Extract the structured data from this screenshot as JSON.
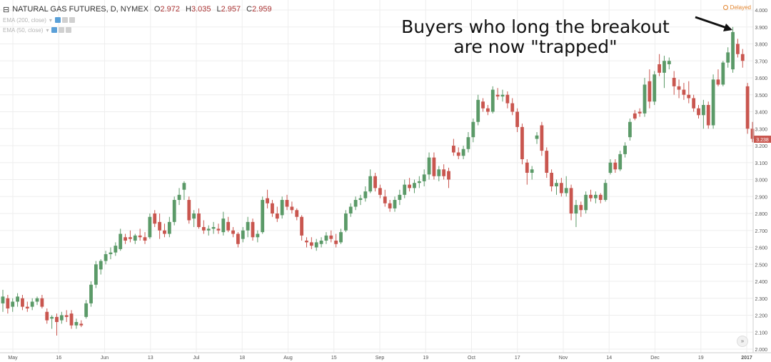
{
  "legend": {
    "symbol": "NATURAL GAS FUTURES, D, NYMEX",
    "open_label": "O",
    "open": "2.972",
    "high_label": "H",
    "high": "3.035",
    "low_label": "L",
    "low": "2.957",
    "close_label": "C",
    "close": "2.959",
    "indicators": [
      {
        "label": "EMA (200, close)"
      },
      {
        "label": "EMA (50, close)"
      }
    ]
  },
  "status": {
    "delayed": "Delayed"
  },
  "annotation": {
    "line1": "Buyers who long the breakout",
    "line2": "are now \"trapped\""
  },
  "icons": {
    "collapse": "collapse-legend-icon",
    "chevron": "chevron-down-icon",
    "eye": "eye-icon",
    "gear": "gear-icon",
    "close": "close-icon",
    "goto": "double-chevron-right-icon",
    "arrow": "arrow-annotation-icon"
  },
  "colors": {
    "up": "#5b9a68",
    "down": "#c9564f",
    "grid": "#eeeeee",
    "price_tag": "#c9564f",
    "delayed": "#e2832b"
  },
  "chart_data": {
    "type": "candlestick",
    "title": "NATURAL GAS FUTURES, D, NYMEX",
    "xlabel": "",
    "ylabel": "",
    "ylim": [
      2.0,
      4.0
    ],
    "y_ticks": [
      "4.000",
      "3.900",
      "3.800",
      "3.700",
      "3.600",
      "3.500",
      "3.400",
      "3.300",
      "3.200",
      "3.100",
      "3.000",
      "2.900",
      "2.800",
      "2.700",
      "2.600",
      "2.500",
      "2.400",
      "2.300",
      "2.200",
      "2.100",
      "2.000"
    ],
    "x_tick_labels": [
      "May",
      "16",
      "Jun",
      "13",
      "Jul",
      "18",
      "Aug",
      "15",
      "Sep",
      "19",
      "Oct",
      "17",
      "Nov",
      "14",
      "Dec",
      "19",
      "2017"
    ],
    "last_price": "3.238",
    "grid": true,
    "candles": [
      {
        "o": 2.27,
        "h": 2.35,
        "l": 2.22,
        "c": 2.31
      },
      {
        "o": 2.3,
        "h": 2.32,
        "l": 2.21,
        "c": 2.24
      },
      {
        "o": 2.25,
        "h": 2.3,
        "l": 2.22,
        "c": 2.28
      },
      {
        "o": 2.28,
        "h": 2.33,
        "l": 2.25,
        "c": 2.31
      },
      {
        "o": 2.3,
        "h": 2.32,
        "l": 2.23,
        "c": 2.25
      },
      {
        "o": 2.25,
        "h": 2.28,
        "l": 2.22,
        "c": 2.24
      },
      {
        "o": 2.25,
        "h": 2.3,
        "l": 2.23,
        "c": 2.28
      },
      {
        "o": 2.28,
        "h": 2.31,
        "l": 2.26,
        "c": 2.3
      },
      {
        "o": 2.3,
        "h": 2.32,
        "l": 2.24,
        "c": 2.25
      },
      {
        "o": 2.22,
        "h": 2.24,
        "l": 2.15,
        "c": 2.17
      },
      {
        "o": 2.18,
        "h": 2.2,
        "l": 2.12,
        "c": 2.19
      },
      {
        "o": 2.19,
        "h": 2.21,
        "l": 2.08,
        "c": 2.16
      },
      {
        "o": 2.17,
        "h": 2.22,
        "l": 2.15,
        "c": 2.2
      },
      {
        "o": 2.2,
        "h": 2.23,
        "l": 2.16,
        "c": 2.19
      },
      {
        "o": 2.21,
        "h": 2.23,
        "l": 2.12,
        "c": 2.14
      },
      {
        "o": 2.14,
        "h": 2.18,
        "l": 2.12,
        "c": 2.16
      },
      {
        "o": 2.15,
        "h": 2.17,
        "l": 2.13,
        "c": 2.14
      },
      {
        "o": 2.19,
        "h": 2.29,
        "l": 2.18,
        "c": 2.27
      },
      {
        "o": 2.27,
        "h": 2.4,
        "l": 2.25,
        "c": 2.38
      },
      {
        "o": 2.38,
        "h": 2.52,
        "l": 2.36,
        "c": 2.5
      },
      {
        "o": 2.47,
        "h": 2.53,
        "l": 2.44,
        "c": 2.52
      },
      {
        "o": 2.52,
        "h": 2.58,
        "l": 2.5,
        "c": 2.56
      },
      {
        "o": 2.56,
        "h": 2.6,
        "l": 2.53,
        "c": 2.57
      },
      {
        "o": 2.57,
        "h": 2.63,
        "l": 2.55,
        "c": 2.61
      },
      {
        "o": 2.59,
        "h": 2.71,
        "l": 2.58,
        "c": 2.68
      },
      {
        "o": 2.66,
        "h": 2.68,
        "l": 2.62,
        "c": 2.64
      },
      {
        "o": 2.66,
        "h": 2.7,
        "l": 2.63,
        "c": 2.65
      },
      {
        "o": 2.64,
        "h": 2.68,
        "l": 2.62,
        "c": 2.67
      },
      {
        "o": 2.67,
        "h": 2.71,
        "l": 2.64,
        "c": 2.66
      },
      {
        "o": 2.66,
        "h": 2.69,
        "l": 2.62,
        "c": 2.64
      },
      {
        "o": 2.66,
        "h": 2.8,
        "l": 2.65,
        "c": 2.78
      },
      {
        "o": 2.8,
        "h": 2.82,
        "l": 2.72,
        "c": 2.74
      },
      {
        "o": 2.75,
        "h": 2.8,
        "l": 2.65,
        "c": 2.7
      },
      {
        "o": 2.7,
        "h": 2.74,
        "l": 2.66,
        "c": 2.68
      },
      {
        "o": 2.68,
        "h": 2.78,
        "l": 2.66,
        "c": 2.75
      },
      {
        "o": 2.75,
        "h": 2.9,
        "l": 2.73,
        "c": 2.88
      },
      {
        "o": 2.88,
        "h": 2.95,
        "l": 2.85,
        "c": 2.91
      },
      {
        "o": 2.94,
        "h": 2.99,
        "l": 2.88,
        "c": 2.98
      },
      {
        "o": 2.88,
        "h": 2.9,
        "l": 2.74,
        "c": 2.76
      },
      {
        "o": 2.77,
        "h": 2.82,
        "l": 2.72,
        "c": 2.8
      },
      {
        "o": 2.8,
        "h": 2.83,
        "l": 2.71,
        "c": 2.72
      },
      {
        "o": 2.72,
        "h": 2.76,
        "l": 2.68,
        "c": 2.7
      },
      {
        "o": 2.7,
        "h": 2.73,
        "l": 2.67,
        "c": 2.71
      },
      {
        "o": 2.71,
        "h": 2.75,
        "l": 2.68,
        "c": 2.72
      },
      {
        "o": 2.71,
        "h": 2.74,
        "l": 2.68,
        "c": 2.7
      },
      {
        "o": 2.69,
        "h": 2.81,
        "l": 2.67,
        "c": 2.77
      },
      {
        "o": 2.75,
        "h": 2.78,
        "l": 2.69,
        "c": 2.7
      },
      {
        "o": 2.7,
        "h": 2.72,
        "l": 2.66,
        "c": 2.68
      },
      {
        "o": 2.68,
        "h": 2.69,
        "l": 2.6,
        "c": 2.62
      },
      {
        "o": 2.65,
        "h": 2.72,
        "l": 2.63,
        "c": 2.7
      },
      {
        "o": 2.7,
        "h": 2.78,
        "l": 2.66,
        "c": 2.75
      },
      {
        "o": 2.75,
        "h": 2.77,
        "l": 2.64,
        "c": 2.66
      },
      {
        "o": 2.66,
        "h": 2.7,
        "l": 2.63,
        "c": 2.68
      },
      {
        "o": 2.69,
        "h": 2.9,
        "l": 2.68,
        "c": 2.88
      },
      {
        "o": 2.89,
        "h": 2.94,
        "l": 2.83,
        "c": 2.86
      },
      {
        "o": 2.86,
        "h": 2.88,
        "l": 2.78,
        "c": 2.8
      },
      {
        "o": 2.8,
        "h": 2.84,
        "l": 2.75,
        "c": 2.77
      },
      {
        "o": 2.79,
        "h": 2.9,
        "l": 2.77,
        "c": 2.88
      },
      {
        "o": 2.88,
        "h": 2.91,
        "l": 2.82,
        "c": 2.84
      },
      {
        "o": 2.84,
        "h": 2.87,
        "l": 2.8,
        "c": 2.82
      },
      {
        "o": 2.82,
        "h": 2.83,
        "l": 2.76,
        "c": 2.78
      },
      {
        "o": 2.78,
        "h": 2.79,
        "l": 2.64,
        "c": 2.67
      },
      {
        "o": 2.64,
        "h": 2.66,
        "l": 2.6,
        "c": 2.63
      },
      {
        "o": 2.63,
        "h": 2.66,
        "l": 2.59,
        "c": 2.61
      },
      {
        "o": 2.6,
        "h": 2.65,
        "l": 2.58,
        "c": 2.63
      },
      {
        "o": 2.62,
        "h": 2.66,
        "l": 2.6,
        "c": 2.64
      },
      {
        "o": 2.64,
        "h": 2.69,
        "l": 2.62,
        "c": 2.67
      },
      {
        "o": 2.67,
        "h": 2.7,
        "l": 2.63,
        "c": 2.65
      },
      {
        "o": 2.64,
        "h": 2.68,
        "l": 2.6,
        "c": 2.62
      },
      {
        "o": 2.63,
        "h": 2.71,
        "l": 2.62,
        "c": 2.69
      },
      {
        "o": 2.7,
        "h": 2.82,
        "l": 2.69,
        "c": 2.8
      },
      {
        "o": 2.8,
        "h": 2.86,
        "l": 2.78,
        "c": 2.84
      },
      {
        "o": 2.84,
        "h": 2.9,
        "l": 2.82,
        "c": 2.88
      },
      {
        "o": 2.88,
        "h": 2.91,
        "l": 2.85,
        "c": 2.89
      },
      {
        "o": 2.89,
        "h": 2.96,
        "l": 2.87,
        "c": 2.93
      },
      {
        "o": 2.93,
        "h": 3.06,
        "l": 2.92,
        "c": 3.02
      },
      {
        "o": 3.02,
        "h": 3.04,
        "l": 2.93,
        "c": 2.95
      },
      {
        "o": 2.95,
        "h": 2.97,
        "l": 2.89,
        "c": 2.91
      },
      {
        "o": 2.9,
        "h": 2.94,
        "l": 2.84,
        "c": 2.86
      },
      {
        "o": 2.86,
        "h": 2.88,
        "l": 2.81,
        "c": 2.83
      },
      {
        "o": 2.83,
        "h": 2.9,
        "l": 2.81,
        "c": 2.88
      },
      {
        "o": 2.88,
        "h": 2.94,
        "l": 2.85,
        "c": 2.91
      },
      {
        "o": 2.91,
        "h": 3.0,
        "l": 2.89,
        "c": 2.97
      },
      {
        "o": 2.97,
        "h": 3.01,
        "l": 2.93,
        "c": 2.95
      },
      {
        "o": 2.95,
        "h": 3.0,
        "l": 2.92,
        "c": 2.98
      },
      {
        "o": 2.98,
        "h": 3.02,
        "l": 2.95,
        "c": 2.99
      },
      {
        "o": 2.99,
        "h": 3.06,
        "l": 2.96,
        "c": 3.03
      },
      {
        "o": 3.03,
        "h": 3.16,
        "l": 3.0,
        "c": 3.13
      },
      {
        "o": 3.13,
        "h": 3.16,
        "l": 3.0,
        "c": 3.02
      },
      {
        "o": 3.02,
        "h": 3.08,
        "l": 2.99,
        "c": 3.06
      },
      {
        "o": 3.06,
        "h": 3.09,
        "l": 3.0,
        "c": 3.02
      },
      {
        "o": 3.05,
        "h": 3.07,
        "l": 2.95,
        "c": 3.0
      },
      {
        "o": 3.2,
        "h": 3.24,
        "l": 3.14,
        "c": 3.16
      },
      {
        "o": 3.16,
        "h": 3.19,
        "l": 3.12,
        "c": 3.14
      },
      {
        "o": 3.14,
        "h": 3.2,
        "l": 3.12,
        "c": 3.18
      },
      {
        "o": 3.18,
        "h": 3.28,
        "l": 3.16,
        "c": 3.25
      },
      {
        "o": 3.25,
        "h": 3.36,
        "l": 3.22,
        "c": 3.34
      },
      {
        "o": 3.34,
        "h": 3.5,
        "l": 3.32,
        "c": 3.47
      },
      {
        "o": 3.46,
        "h": 3.48,
        "l": 3.4,
        "c": 3.42
      },
      {
        "o": 3.42,
        "h": 3.44,
        "l": 3.38,
        "c": 3.4
      },
      {
        "o": 3.4,
        "h": 3.55,
        "l": 3.39,
        "c": 3.53
      },
      {
        "o": 3.5,
        "h": 3.54,
        "l": 3.47,
        "c": 3.49
      },
      {
        "o": 3.49,
        "h": 3.53,
        "l": 3.46,
        "c": 3.5
      },
      {
        "o": 3.5,
        "h": 3.52,
        "l": 3.42,
        "c": 3.45
      },
      {
        "o": 3.45,
        "h": 3.48,
        "l": 3.38,
        "c": 3.4
      },
      {
        "o": 3.4,
        "h": 3.42,
        "l": 3.28,
        "c": 3.31
      },
      {
        "o": 3.31,
        "h": 3.33,
        "l": 3.09,
        "c": 3.12
      },
      {
        "o": 3.1,
        "h": 3.12,
        "l": 2.97,
        "c": 3.04
      },
      {
        "o": 3.04,
        "h": 3.08,
        "l": 3.0,
        "c": 3.06
      },
      {
        "o": 3.24,
        "h": 3.28,
        "l": 3.21,
        "c": 3.26
      },
      {
        "o": 3.32,
        "h": 3.34,
        "l": 3.14,
        "c": 3.17
      },
      {
        "o": 3.17,
        "h": 3.19,
        "l": 3.01,
        "c": 3.04
      },
      {
        "o": 3.04,
        "h": 3.06,
        "l": 2.93,
        "c": 2.96
      },
      {
        "o": 2.96,
        "h": 3.0,
        "l": 2.91,
        "c": 2.98
      },
      {
        "o": 2.98,
        "h": 3.01,
        "l": 2.9,
        "c": 2.92
      },
      {
        "o": 2.92,
        "h": 3.02,
        "l": 2.9,
        "c": 2.95
      },
      {
        "o": 2.95,
        "h": 2.97,
        "l": 2.76,
        "c": 2.8
      },
      {
        "o": 2.8,
        "h": 2.88,
        "l": 2.72,
        "c": 2.85
      },
      {
        "o": 2.85,
        "h": 2.87,
        "l": 2.78,
        "c": 2.82
      },
      {
        "o": 2.82,
        "h": 2.93,
        "l": 2.8,
        "c": 2.91
      },
      {
        "o": 2.91,
        "h": 2.94,
        "l": 2.87,
        "c": 2.89
      },
      {
        "o": 2.89,
        "h": 2.93,
        "l": 2.86,
        "c": 2.91
      },
      {
        "o": 2.91,
        "h": 2.92,
        "l": 2.86,
        "c": 2.88
      },
      {
        "o": 2.88,
        "h": 3.0,
        "l": 2.87,
        "c": 2.98
      },
      {
        "o": 3.04,
        "h": 3.12,
        "l": 3.03,
        "c": 3.1
      },
      {
        "o": 3.1,
        "h": 3.12,
        "l": 3.04,
        "c": 3.06
      },
      {
        "o": 3.06,
        "h": 3.17,
        "l": 3.05,
        "c": 3.15
      },
      {
        "o": 3.15,
        "h": 3.22,
        "l": 3.13,
        "c": 3.2
      },
      {
        "o": 3.25,
        "h": 3.36,
        "l": 3.23,
        "c": 3.34
      },
      {
        "o": 3.39,
        "h": 3.41,
        "l": 3.35,
        "c": 3.36
      },
      {
        "o": 3.4,
        "h": 3.42,
        "l": 3.37,
        "c": 3.39
      },
      {
        "o": 3.39,
        "h": 3.6,
        "l": 3.37,
        "c": 3.56
      },
      {
        "o": 3.58,
        "h": 3.65,
        "l": 3.42,
        "c": 3.46
      },
      {
        "o": 3.46,
        "h": 3.64,
        "l": 3.44,
        "c": 3.62
      },
      {
        "o": 3.68,
        "h": 3.74,
        "l": 3.61,
        "c": 3.63
      },
      {
        "o": 3.63,
        "h": 3.73,
        "l": 3.54,
        "c": 3.7
      },
      {
        "o": 3.68,
        "h": 3.72,
        "l": 3.65,
        "c": 3.7
      },
      {
        "o": 3.6,
        "h": 3.64,
        "l": 3.5,
        "c": 3.55
      },
      {
        "o": 3.55,
        "h": 3.59,
        "l": 3.48,
        "c": 3.53
      },
      {
        "o": 3.53,
        "h": 3.57,
        "l": 3.47,
        "c": 3.5
      },
      {
        "o": 3.5,
        "h": 3.58,
        "l": 3.45,
        "c": 3.48
      },
      {
        "o": 3.48,
        "h": 3.5,
        "l": 3.4,
        "c": 3.42
      },
      {
        "o": 3.42,
        "h": 3.44,
        "l": 3.36,
        "c": 3.38
      },
      {
        "o": 3.38,
        "h": 3.47,
        "l": 3.3,
        "c": 3.44
      },
      {
        "o": 3.44,
        "h": 3.46,
        "l": 3.3,
        "c": 3.32
      },
      {
        "o": 3.32,
        "h": 3.62,
        "l": 3.3,
        "c": 3.59
      },
      {
        "o": 3.59,
        "h": 3.65,
        "l": 3.55,
        "c": 3.56
      },
      {
        "o": 3.56,
        "h": 3.7,
        "l": 3.55,
        "c": 3.69
      },
      {
        "o": 3.69,
        "h": 3.78,
        "l": 3.66,
        "c": 3.75
      },
      {
        "o": 3.65,
        "h": 3.9,
        "l": 3.63,
        "c": 3.87
      },
      {
        "o": 3.8,
        "h": 3.83,
        "l": 3.72,
        "c": 3.74
      },
      {
        "o": 3.74,
        "h": 3.77,
        "l": 3.66,
        "c": 3.7
      },
      {
        "o": 3.55,
        "h": 3.57,
        "l": 3.27,
        "c": 3.3
      },
      {
        "o": 3.3,
        "h": 3.34,
        "l": 3.22,
        "c": 3.24
      }
    ]
  }
}
